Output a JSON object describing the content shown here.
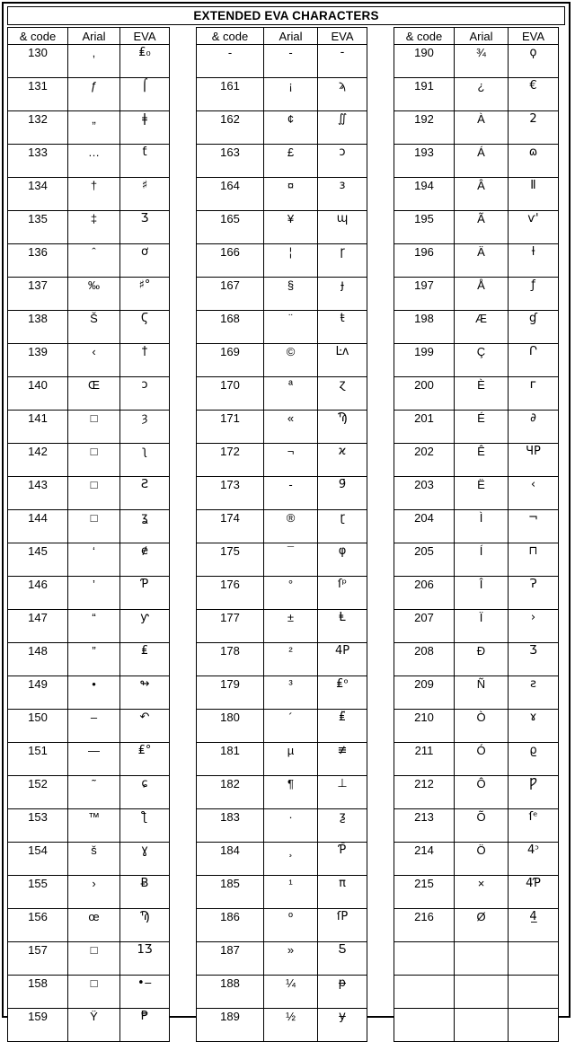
{
  "title": "EXTENDED EVA CHARACTERS",
  "column_headers": [
    "& code",
    "Arial",
    "EVA"
  ],
  "tables": [
    {
      "name": "codes-130-159",
      "rows": [
        {
          "code": "130",
          "arial": "‚",
          "eva": "₤₀"
        },
        {
          "code": "131",
          "arial": "ƒ",
          "eva": "⌠"
        },
        {
          "code": "132",
          "arial": "„",
          "eva": "ǂ"
        },
        {
          "code": "133",
          "arial": "…",
          "eva": "ƭ"
        },
        {
          "code": "134",
          "arial": "†",
          "eva": "♯"
        },
        {
          "code": "135",
          "arial": "‡",
          "eva": "Ʒ"
        },
        {
          "code": "136",
          "arial": "ˆ",
          "eva": "ơ"
        },
        {
          "code": "137",
          "arial": "‰",
          "eva": "♯°"
        },
        {
          "code": "138",
          "arial": "Š",
          "eva": "Ϛ"
        },
        {
          "code": "139",
          "arial": "‹",
          "eva": "†"
        },
        {
          "code": "140",
          "arial": "Œ",
          "eva": "ɔ"
        },
        {
          "code": "141",
          "arial": "□",
          "eva": "ȝ"
        },
        {
          "code": "142",
          "arial": "□",
          "eva": "ʅ"
        },
        {
          "code": "143",
          "arial": "□",
          "eva": "Ƨ"
        },
        {
          "code": "144",
          "arial": "□",
          "eva": "ʓ"
        },
        {
          "code": "145",
          "arial": "‘",
          "eva": "ɇ"
        },
        {
          "code": "146",
          "arial": "’",
          "eva": "Ƥ"
        },
        {
          "code": "147",
          "arial": "“",
          "eva": "ƴ"
        },
        {
          "code": "148",
          "arial": "”",
          "eva": "₤"
        },
        {
          "code": "149",
          "arial": "•",
          "eva": "↬"
        },
        {
          "code": "150",
          "arial": "–",
          "eva": "↶"
        },
        {
          "code": "151",
          "arial": "—",
          "eva": "₤°"
        },
        {
          "code": "152",
          "arial": "˜",
          "eva": "ɕ"
        },
        {
          "code": "153",
          "arial": "™",
          "eva": "ƪ"
        },
        {
          "code": "154",
          "arial": "š",
          "eva": "ɣ"
        },
        {
          "code": "155",
          "arial": "›",
          "eva": "Ƀ"
        },
        {
          "code": "156",
          "arial": "œ",
          "eva": "Ϡ"
        },
        {
          "code": "157",
          "arial": "□",
          "eva": "1Ʒ"
        },
        {
          "code": "158",
          "arial": "□",
          "eva": "•‒"
        },
        {
          "code": "159",
          "arial": "Ÿ",
          "eva": "₱"
        }
      ]
    },
    {
      "name": "codes-160-189",
      "rows": [
        {
          "code": "-",
          "arial": "-",
          "eva": "-"
        },
        {
          "code": "161",
          "arial": "¡",
          "eva": "ϡ"
        },
        {
          "code": "162",
          "arial": "¢",
          "eva": "∬"
        },
        {
          "code": "163",
          "arial": "£",
          "eva": "ɔ"
        },
        {
          "code": "164",
          "arial": "¤",
          "eva": "ɜ"
        },
        {
          "code": "165",
          "arial": "¥",
          "eva": "ɰ"
        },
        {
          "code": "166",
          "arial": "¦",
          "eva": "ɼ"
        },
        {
          "code": "167",
          "arial": "§",
          "eva": "ɟ"
        },
        {
          "code": "168",
          "arial": "¨",
          "eva": "ŧ"
        },
        {
          "code": "169",
          "arial": "©",
          "eva": "Ŀʌ"
        },
        {
          "code": "170",
          "arial": "ª",
          "eva": "ɀ"
        },
        {
          "code": "171",
          "arial": "«",
          "eva": "Ϡ"
        },
        {
          "code": "172",
          "arial": "¬",
          "eva": "ϰ"
        },
        {
          "code": "173",
          "arial": "-",
          "eva": "9̄"
        },
        {
          "code": "174",
          "arial": "®",
          "eva": "ɽ"
        },
        {
          "code": "175",
          "arial": "¯",
          "eva": "φ"
        },
        {
          "code": "176",
          "arial": "°",
          "eva": "ſᵖ"
        },
        {
          "code": "177",
          "arial": "±",
          "eva": "Ⱡ"
        },
        {
          "code": "178",
          "arial": "²",
          "eva": "4P"
        },
        {
          "code": "179",
          "arial": "³",
          "eva": "₤ᵒ"
        },
        {
          "code": "180",
          "arial": "´",
          "eva": "₤̈"
        },
        {
          "code": "181",
          "arial": "µ",
          "eva": "≢"
        },
        {
          "code": "182",
          "arial": "¶",
          "eva": "⊥"
        },
        {
          "code": "183",
          "arial": "·",
          "eva": "ƺ"
        },
        {
          "code": "184",
          "arial": "¸",
          "eva": "Ƥ̄"
        },
        {
          "code": "185",
          "arial": "¹",
          "eva": "π"
        },
        {
          "code": "186",
          "arial": "º",
          "eva": "ſP"
        },
        {
          "code": "187",
          "arial": "»",
          "eva": "Ƽ"
        },
        {
          "code": "188",
          "arial": "¼",
          "eva": "ᵽ"
        },
        {
          "code": "189",
          "arial": "½",
          "eva": "ɏ"
        }
      ]
    },
    {
      "name": "codes-190-216",
      "rows": [
        {
          "code": "190",
          "arial": "¾",
          "eva": "ϙ"
        },
        {
          "code": "191",
          "arial": "¿",
          "eva": "€"
        },
        {
          "code": "192",
          "arial": "À",
          "eva": "2"
        },
        {
          "code": "193",
          "arial": "Á",
          "eva": "ɷ"
        },
        {
          "code": "194",
          "arial": "Â",
          "eva": "Ⅱ"
        },
        {
          "code": "195",
          "arial": "Ã",
          "eva": "ѵ'"
        },
        {
          "code": "196",
          "arial": "Ä",
          "eva": "ƚ"
        },
        {
          "code": "197",
          "arial": "Å",
          "eva": "ƒ"
        },
        {
          "code": "198",
          "arial": "Æ",
          "eva": "ɠ"
        },
        {
          "code": "199",
          "arial": "Ç",
          "eva": "Ր"
        },
        {
          "code": "200",
          "arial": "È",
          "eva": "ᴦ"
        },
        {
          "code": "201",
          "arial": "É",
          "eva": "∂"
        },
        {
          "code": "202",
          "arial": "Ê",
          "eva": "ЧP"
        },
        {
          "code": "203",
          "arial": "Ë",
          "eva": "‹"
        },
        {
          "code": "204",
          "arial": "Ì",
          "eva": "¬"
        },
        {
          "code": "205",
          "arial": "Í",
          "eva": "⊓"
        },
        {
          "code": "206",
          "arial": "Î",
          "eva": "Ɂ"
        },
        {
          "code": "207",
          "arial": "Ï",
          "eva": "›"
        },
        {
          "code": "208",
          "arial": "Ð",
          "eva": "Ʒ"
        },
        {
          "code": "209",
          "arial": "Ñ",
          "eva": "ƨ"
        },
        {
          "code": "210",
          "arial": "Ò",
          "eva": "ɤ"
        },
        {
          "code": "211",
          "arial": "Ó",
          "eva": "ϱ"
        },
        {
          "code": "212",
          "arial": "Ô",
          "eva": "Ƿ"
        },
        {
          "code": "213",
          "arial": "Õ",
          "eva": "ſᵉ"
        },
        {
          "code": "214",
          "arial": "Ö",
          "eva": "4ᵓ"
        },
        {
          "code": "215",
          "arial": "×",
          "eva": "4Ƥ"
        },
        {
          "code": "216",
          "arial": "Ø",
          "eva": "4̲"
        },
        {
          "code": "",
          "arial": "",
          "eva": ""
        },
        {
          "code": "",
          "arial": "",
          "eva": ""
        },
        {
          "code": "",
          "arial": "",
          "eva": ""
        }
      ]
    }
  ]
}
